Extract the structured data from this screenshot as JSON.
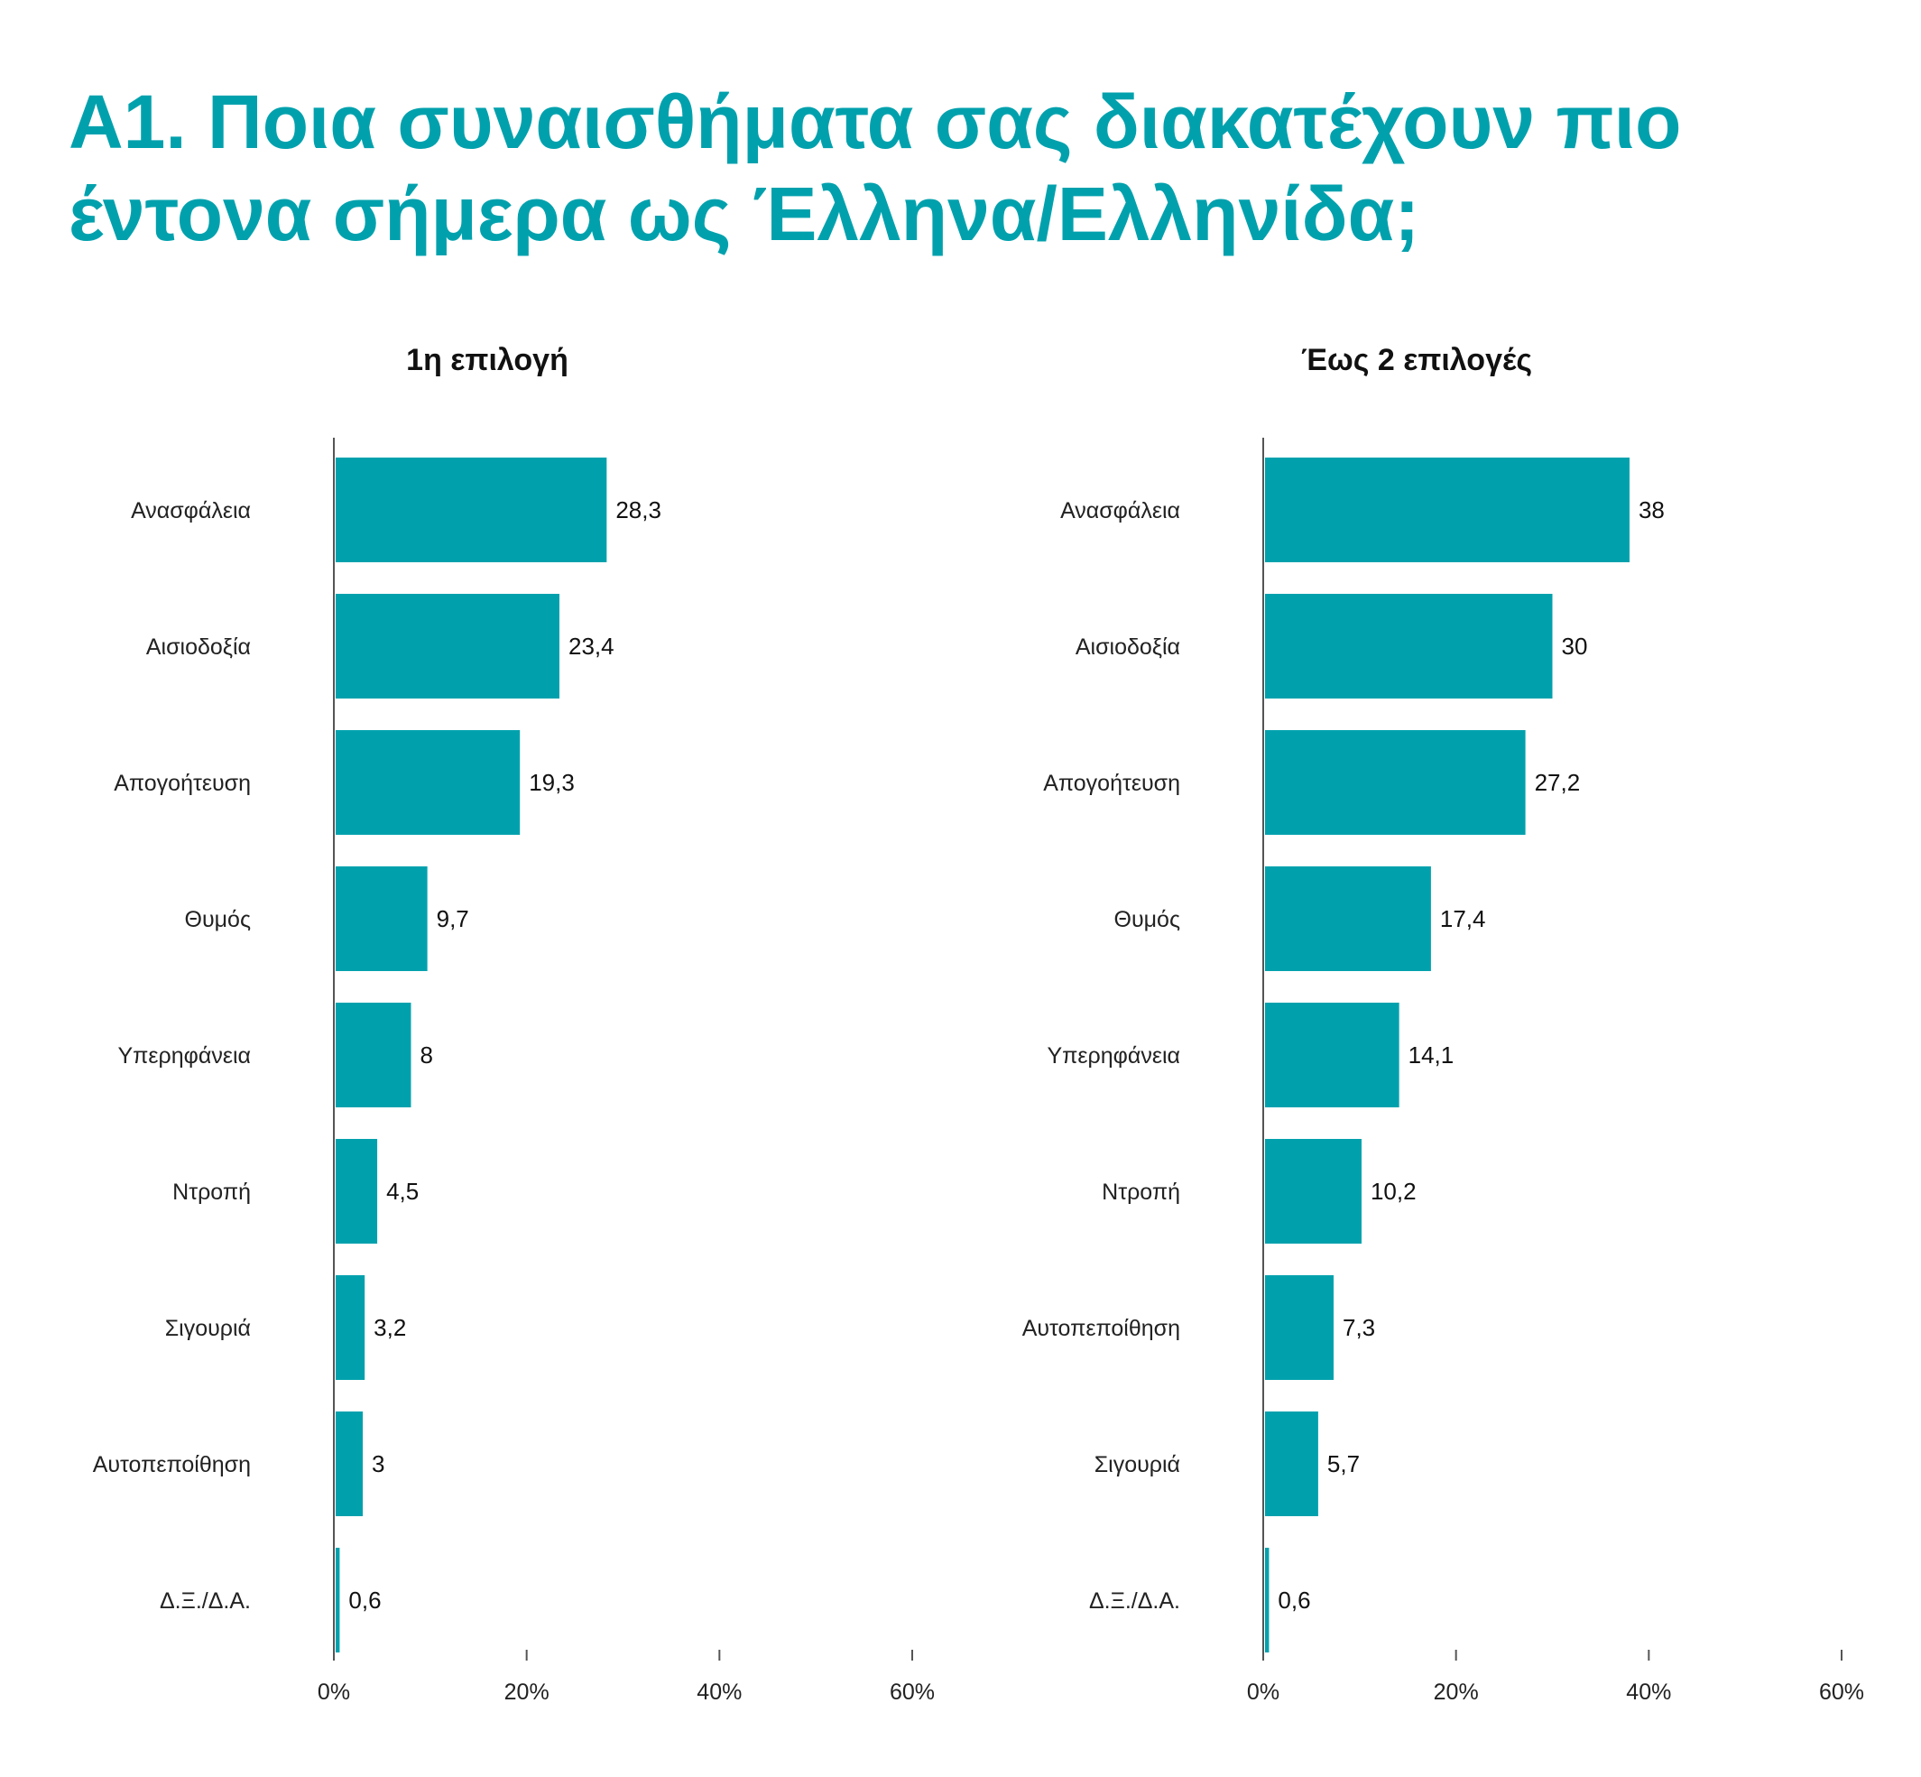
{
  "title": "Α1. Ποια συναισθήματα σας διακατέχουν πιο έντονα σήμερα ως Έλληνα/Ελληνίδα;",
  "colors": {
    "accent": "#00A1AD",
    "bar": "#00A1AD",
    "axis": "#555555"
  },
  "chart_data": [
    {
      "type": "bar",
      "orientation": "horizontal",
      "title": "1η επιλογή",
      "categories": [
        "Ανασφάλεια",
        "Αισιοδοξία",
        "Απογοήτευση",
        "Θυμός",
        "Υπερηφάνεια",
        "Ντροπή",
        "Σιγουριά",
        "Αυτοπεποίθηση",
        "Δ.Ξ./Δ.Α."
      ],
      "values": [
        28.3,
        23.4,
        19.3,
        9.7,
        8,
        4.5,
        3.2,
        3,
        0.6
      ],
      "value_labels": [
        "28,3",
        "23,4",
        "19,3",
        "9,7",
        "8",
        "4,5",
        "3,2",
        "3",
        "0,6"
      ],
      "xlim": [
        0,
        60
      ],
      "ticks": [
        "0%",
        "20%",
        "40%",
        "60%"
      ],
      "tick_values": [
        0,
        20,
        40,
        60
      ],
      "grid": false,
      "legend": "none"
    },
    {
      "type": "bar",
      "orientation": "horizontal",
      "title": "Έως 2 επιλογές",
      "categories": [
        "Ανασφάλεια",
        "Αισιοδοξία",
        "Απογοήτευση",
        "Θυμός",
        "Υπερηφάνεια",
        "Ντροπή",
        "Αυτοπεποίθηση",
        "Σιγουριά",
        "Δ.Ξ./Δ.Α."
      ],
      "values": [
        38,
        30,
        27.2,
        17.4,
        14.1,
        10.2,
        7.3,
        5.7,
        0.6
      ],
      "value_labels": [
        "38",
        "30",
        "27,2",
        "17,4",
        "14,1",
        "10,2",
        "7,3",
        "5,7",
        "0,6"
      ],
      "xlim": [
        0,
        60
      ],
      "ticks": [
        "0%",
        "20%",
        "40%",
        "60%"
      ],
      "tick_values": [
        0,
        20,
        40,
        60
      ],
      "grid": false,
      "legend": "none"
    }
  ]
}
